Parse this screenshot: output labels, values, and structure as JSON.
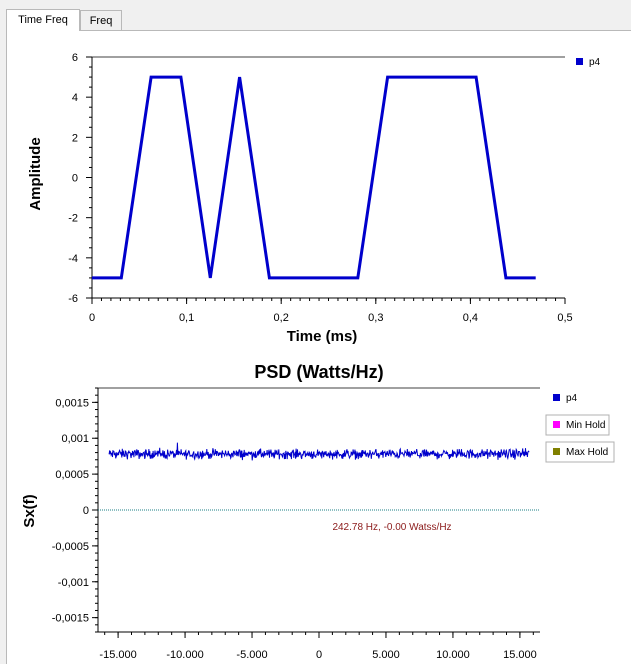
{
  "tabs": [
    {
      "label": "Time  Freq",
      "active": true
    },
    {
      "label": "Freq",
      "active": false
    }
  ],
  "time_plot": {
    "chart_data": {
      "type": "line",
      "xlabel": "Time (ms)",
      "ylabel": "Amplitude",
      "xlim": [
        0,
        0.5
      ],
      "ylim": [
        -6,
        6
      ],
      "x_ticks": [
        "0",
        "0,1",
        "0,2",
        "0,3",
        "0,4",
        "0,5"
      ],
      "y_ticks": [
        "6",
        "4",
        "2",
        "0",
        "-2",
        "-4",
        "-6"
      ],
      "series": [
        {
          "name": "p4",
          "color": "#0000cc",
          "x": [
            0,
            0.031,
            0.0625,
            0.094,
            0.125,
            0.156,
            0.1875,
            0.281,
            0.3125,
            0.406,
            0.4375,
            0.469
          ],
          "y": [
            -5,
            -5,
            5,
            5,
            -5,
            5,
            -5,
            -5,
            5,
            5,
            -5,
            -5
          ]
        }
      ]
    }
  },
  "psd_plot": {
    "chart_data": {
      "type": "line",
      "title": "PSD (Watts/Hz)",
      "ylabel": "Sx(f)",
      "xlim": [
        -16500,
        16500
      ],
      "ylim": [
        -0.0017,
        0.0017
      ],
      "x_ticks": [
        "-15.000",
        "-10.000",
        "-5.000",
        "0",
        "5.000",
        "10.000",
        "15.000"
      ],
      "y_ticks": [
        "0,0015",
        "0,001",
        "0,0005",
        "0",
        "-0,0005",
        "-0,001",
        "-0,0015"
      ],
      "series": [
        {
          "name": "p4",
          "color": "#0000cc",
          "level": 0.00078,
          "noise": 5e-05
        },
        {
          "name": "Min Hold",
          "color": "#ff00ff"
        },
        {
          "name": "Max Hold",
          "color": "#808000"
        }
      ],
      "annotation": "242.78 Hz, -0.00 Watss/Hz"
    }
  }
}
